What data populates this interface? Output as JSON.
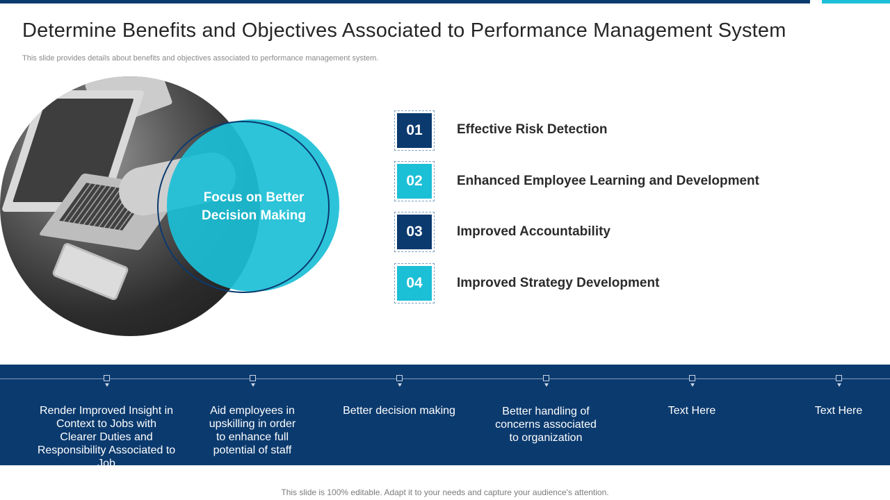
{
  "slide": {
    "title": "Determine Benefits and Objectives Associated to Performance Management System",
    "subtitle": "This slide provides details about benefits and objectives associated to performance management system.",
    "focus_text": "Focus on Better Decision Making",
    "items": [
      {
        "number": "01",
        "label": "Effective Risk Detection"
      },
      {
        "number": "02",
        "label": "Enhanced Employee Learning and Development"
      },
      {
        "number": "03",
        "label": "Improved Accountability"
      },
      {
        "number": "04",
        "label": "Improved Strategy Development"
      }
    ],
    "benefits": [
      "Render Improved Insight in Context to Jobs with Clearer Duties and Responsibility Associated to Job",
      "Aid employees in upskilling in order to enhance full potential of staff",
      "Better decision making",
      "Better handling of concerns associated to organization",
      "Text Here",
      "Text Here"
    ],
    "footer": "This slide is 100% editable. Adapt it to your needs and capture your audience's attention."
  },
  "colors": {
    "navy": "#0b3a6e",
    "teal": "#1bbfd6"
  },
  "icons": {
    "photo": "laptop-photo",
    "timeline_marker": "timeline-marker-icon"
  }
}
